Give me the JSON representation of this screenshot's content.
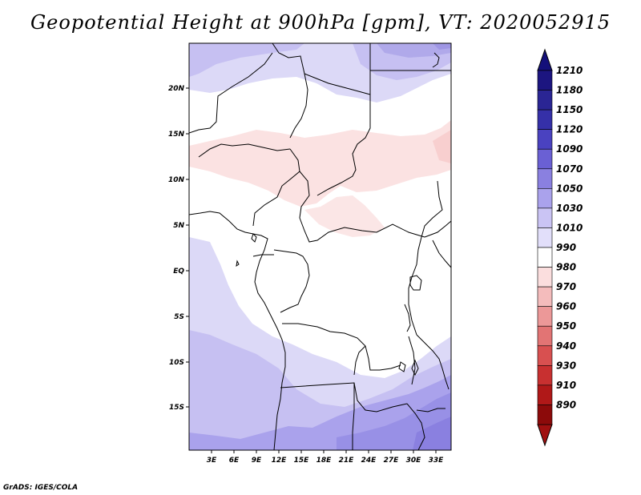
{
  "title": "Geopotential Height at 900hPa [gpm], VT: 2020052915",
  "footer": "GrADS: IGES/COLA",
  "map": {
    "lat_labels": [
      "20N",
      "15N",
      "10N",
      "5N",
      "EQ",
      "5S",
      "10S",
      "15S"
    ],
    "lon_labels": [
      "3E",
      "6E",
      "9E",
      "12E",
      "15E",
      "18E",
      "21E",
      "24E",
      "27E",
      "30E",
      "33E"
    ]
  },
  "colorbar": {
    "levels": [
      "1210",
      "1180",
      "1150",
      "1120",
      "1090",
      "1070",
      "1050",
      "1030",
      "1010",
      "990",
      "980",
      "970",
      "960",
      "950",
      "940",
      "930",
      "910",
      "890"
    ],
    "colors": [
      "#1c1580",
      "#2a2594",
      "#3530a8",
      "#4a42c0",
      "#6a60d4",
      "#8a80e0",
      "#aaa2ec",
      "#cac4f4",
      "#e2dffa",
      "#ffffff",
      "#fbdede",
      "#f4bcbc",
      "#ec9898",
      "#e27474",
      "#d85050",
      "#c83030",
      "#b01818",
      "#8c0a0a"
    ],
    "cap_top_color": "#14107a",
    "cap_bottom_color": "#a01010"
  }
}
